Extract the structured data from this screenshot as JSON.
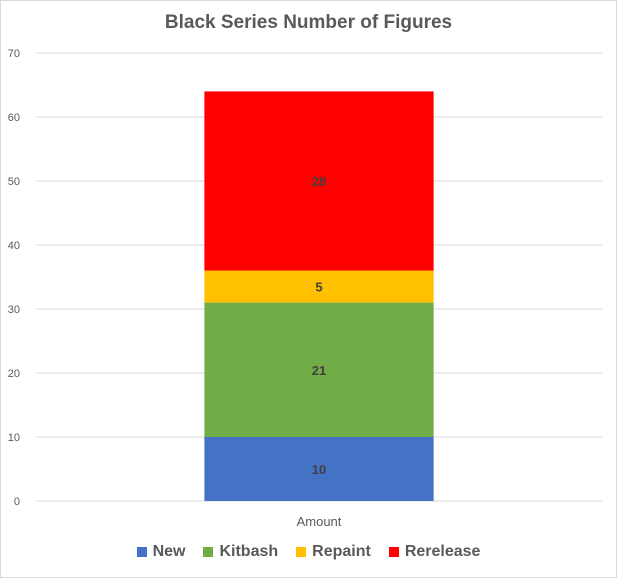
{
  "chart_data": {
    "type": "bar",
    "stacked": true,
    "title": "Black Series Number of Figures",
    "xlabel": "",
    "ylabel": "",
    "categories": [
      "Amount"
    ],
    "ylim": [
      0,
      70
    ],
    "yticks": [
      0,
      10,
      20,
      30,
      40,
      50,
      60,
      70
    ],
    "grid": true,
    "legend_position": "bottom",
    "series": [
      {
        "name": "New",
        "values": [
          10
        ],
        "color": "#4472c4"
      },
      {
        "name": "Kitbash",
        "values": [
          21
        ],
        "color": "#70ad47"
      },
      {
        "name": "Repaint",
        "values": [
          5
        ],
        "color": "#ffc000"
      },
      {
        "name": "Rerelease",
        "values": [
          28
        ],
        "color": "#ff0000"
      }
    ]
  }
}
